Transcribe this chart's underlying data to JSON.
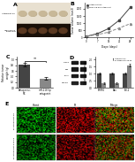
{
  "fig_bg": "#ffffff",
  "panel_label_fontsize": 4.5,
  "panel_a": {
    "bg_top": "#e8e0d0",
    "bg_bottom": "#1a1008",
    "tumor_color_top": "#c8b898",
    "tumor_color_bottom": "#5a3820",
    "n_tumors": 5,
    "label_top": "Antagonist-NC",
    "label_bottom": "miR-218-5p\nantagonist"
  },
  "line_plot": {
    "x": [
      0,
      7,
      14,
      21,
      28
    ],
    "y_antagonist": [
      60,
      250,
      600,
      1200,
      2100
    ],
    "y_mirshd": [
      60,
      180,
      350,
      650,
      950
    ],
    "color_antagonist": "#444444",
    "color_mirshd": "#888888",
    "legend_labels": [
      "Antagonist-NC",
      "miR-218-5p antagonist"
    ],
    "xlabel": "Days (days)",
    "ylabel": "Tumor Volume (mm3)",
    "marker_antagonist": "s",
    "marker_mirshd": "^",
    "yticks": [
      0,
      500,
      1000,
      1500,
      2000
    ],
    "xticks": [
      0,
      7,
      14,
      21,
      28
    ]
  },
  "bar_c": {
    "categories": [
      "Antagonist-\nNC",
      "miR-218-5p\nantagonist"
    ],
    "values": [
      0.82,
      0.32
    ],
    "errors": [
      0.06,
      0.04
    ],
    "colors": [
      "#444444",
      "#888888"
    ],
    "ylabel": "Relative tumor\nweight (g)",
    "sig_text": "**",
    "ylim": [
      0,
      1.1
    ]
  },
  "bar_d": {
    "categories": [
      "SFRP4",
      "Bax",
      "Bcl-2"
    ],
    "values_nc": [
      1.0,
      1.0,
      1.0
    ],
    "values_mir": [
      0.32,
      0.28,
      1.6
    ],
    "errors_nc": [
      0.06,
      0.07,
      0.06
    ],
    "errors_mir": [
      0.05,
      0.06,
      0.1
    ],
    "colors_nc": "#444444",
    "colors_mir": "#888888",
    "ylabel": "Relative expression",
    "legend_labels": [
      "Antagonist-NC",
      "SI-Antagonist-218-5p"
    ],
    "ylim": [
      0,
      2.2
    ]
  },
  "wb_labels": [
    "SFRP4",
    "Bax",
    "Bcl-2",
    "GAPDH"
  ],
  "wb_band_colors": [
    "#222222",
    "#333333",
    "#282828",
    "#252525"
  ],
  "wb_bg": "#c8c8c8",
  "fluor_cols": [
    "Homt",
    "PI",
    "Merge"
  ],
  "fluor_rows": [
    "SI-Antagonist-NC",
    "SI-Antagonist-218-5p"
  ],
  "fluor_green_bright": 0.55,
  "fluor_green_dim": 0.38,
  "fluor_red_bright": 0.7,
  "fluor_red_dim": 0.55
}
